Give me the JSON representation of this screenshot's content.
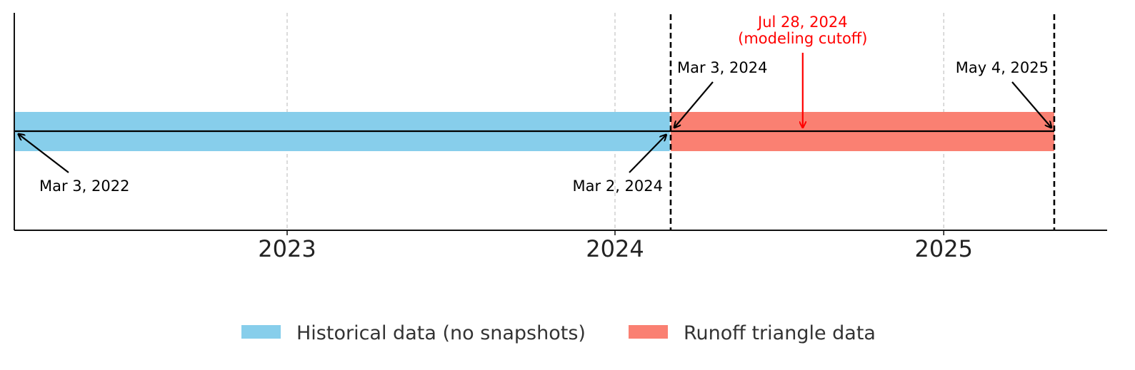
{
  "chart_data": {
    "type": "timeline",
    "x_axis": {
      "ticks": [
        "2023",
        "2024",
        "2025"
      ],
      "tick_values": [
        "2023-01-01",
        "2024-01-01",
        "2025-01-01"
      ],
      "range": [
        "2022-03-03",
        "2025-09-01"
      ],
      "grid": true
    },
    "periods": [
      {
        "name": "Historical data (no snapshots)",
        "start": "2022-03-03",
        "end": "2024-03-02",
        "color": "#87ceeb"
      },
      {
        "name": "Runoff triangle data",
        "start": "2024-03-03",
        "end": "2025-05-04",
        "color": "#fa8072"
      }
    ],
    "vertical_lines": [
      "2024-03-03",
      "2025-05-04"
    ],
    "annotations": [
      {
        "id": "start",
        "label": "Mar 3, 2022",
        "date": "2022-03-03",
        "color": "#000000"
      },
      {
        "id": "hist-end",
        "label": "Mar 2, 2024",
        "date": "2024-03-02",
        "color": "#000000"
      },
      {
        "id": "runoff-start",
        "label": "Mar 3, 2024",
        "date": "2024-03-03",
        "color": "#000000"
      },
      {
        "id": "cutoff",
        "label": [
          "Jul 28, 2024",
          "(modeling cutoff)"
        ],
        "date": "2024-07-28",
        "color": "#ff0000"
      },
      {
        "id": "runoff-end",
        "label": "May 4, 2025",
        "date": "2025-05-04",
        "color": "#000000"
      }
    ],
    "legend": {
      "placement": "bottom-center",
      "items": [
        "Historical data (no snapshots)",
        "Runoff triangle data"
      ]
    }
  }
}
